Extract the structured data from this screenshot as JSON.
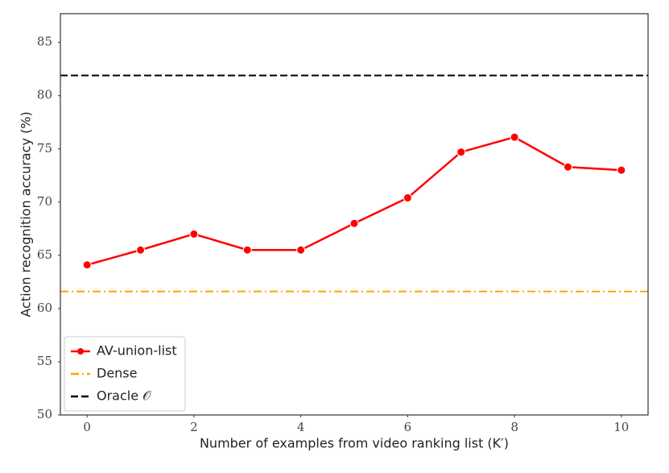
{
  "chart_data": {
    "type": "line",
    "x_label": "Number of examples from video ranking list (K′)",
    "y_label": "Action recognition accuracy (%)",
    "x": [
      0,
      1,
      2,
      3,
      4,
      5,
      6,
      7,
      8,
      9,
      10
    ],
    "series": [
      {
        "name": "AV-union-list",
        "color": "#ff0000",
        "values": [
          64.1,
          65.5,
          67.0,
          65.5,
          65.5,
          68.0,
          70.4,
          74.7,
          76.1,
          73.3,
          73.0
        ]
      }
    ],
    "reference_lines": [
      {
        "name": "Dense",
        "color": "#ffa500",
        "value": 61.6,
        "dash": "dashdot"
      },
      {
        "name": "Oracle 𝒪",
        "color": "#000000",
        "value": 81.9,
        "dash": "dashed"
      }
    ],
    "xlim": [
      -0.5,
      10.5
    ],
    "xticks": [
      0,
      2,
      4,
      6,
      8,
      10
    ],
    "ylim": [
      50,
      87.7
    ],
    "yticks": [
      50,
      55,
      60,
      65,
      70,
      75,
      80,
      85
    ],
    "grid": false,
    "legend": "lower left"
  }
}
